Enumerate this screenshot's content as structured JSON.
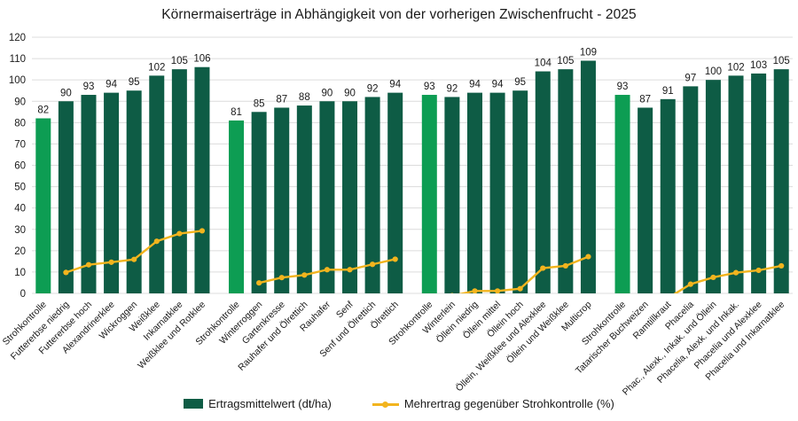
{
  "title": "Körnermaiserträge in Abhängigkeit von der vorherigen Zwischenfrucht - 2025",
  "legend": {
    "bars_label": "Ertragsmittelwert (dt/ha)",
    "line_label": "Mehrertrag gegenüber Strohkontrolle (%)"
  },
  "colors": {
    "bar": "#0E5C45",
    "control_bar": "#0D9D53",
    "line": "#F2B41E",
    "grid": "#DCDCDC",
    "text": "#1A1A1A"
  },
  "chart_data": {
    "type": "bar+line",
    "title": "Körnermaiserträge in Abhängigkeit von der vorherigen Zwischenfrucht - 2025",
    "xlabel": "",
    "ylabel": "",
    "ylim": [
      0,
      120
    ],
    "ytick_step": 10,
    "grid": "horizontal gridlines on",
    "legend_position": "bottom",
    "bar_series_name": "Ertragsmittelwert (dt/ha)",
    "line_series_name": "Mehrertrag gegenüber Strohkontrolle (%)",
    "note": "first bar of each group is the control (Strohkontrolle) in light green; line values below 0 are clipped at the axis",
    "groups": [
      {
        "categories": [
          "Strohkontrolle",
          "Futtererbse niedrig",
          "Futtererbse hoch",
          "Alexandrinerklee",
          "Wickroggen",
          "Weißklee",
          "Inkarnatklee",
          "Weißklee und Rotklee"
        ],
        "bar_values": [
          82,
          90,
          93,
          94,
          95,
          102,
          105,
          106
        ],
        "line_values": [
          null,
          9.8,
          13.4,
          14.6,
          15.9,
          24.4,
          28.0,
          29.3
        ]
      },
      {
        "categories": [
          "Strohkontrolle",
          "Winterroggen",
          "Gartenkresse",
          "Rauhafer und Ölrettich",
          "Rauhafer",
          "Senf",
          "Senf und Ölrettich",
          "Ölrettich"
        ],
        "bar_values": [
          81,
          85,
          87,
          88,
          90,
          90,
          92,
          94
        ],
        "line_values": [
          null,
          4.9,
          7.4,
          8.6,
          11.1,
          11.1,
          13.6,
          16.0
        ]
      },
      {
        "categories": [
          "Strohkontrolle",
          "Winterlein",
          "Öllein niedrig",
          "Öllein mittel",
          "Öllein hoch",
          "Öllein, Weißklee und Alexklee",
          "Öllein und Weißklee",
          "Multicrop"
        ],
        "bar_values": [
          93,
          92,
          94,
          94,
          95,
          104,
          105,
          109
        ],
        "line_values": [
          null,
          -1.1,
          1.1,
          1.1,
          2.2,
          11.8,
          12.9,
          17.2
        ]
      },
      {
        "categories": [
          "Strohkontrolle",
          "Tatarischer Buchweizen",
          "Ramtillkraut",
          "Phacelia",
          "Phac., Alexk., Inkak. und Öllein",
          "Phacelia, Alexk. und Inkak.",
          "Phacelia und Alexklee",
          "Phacelia und Inkarnatklee"
        ],
        "bar_values": [
          93,
          87,
          91,
          97,
          100,
          102,
          103,
          105
        ],
        "line_values": [
          null,
          -6.5,
          -2.2,
          4.3,
          7.5,
          9.7,
          10.8,
          12.9
        ]
      }
    ]
  }
}
